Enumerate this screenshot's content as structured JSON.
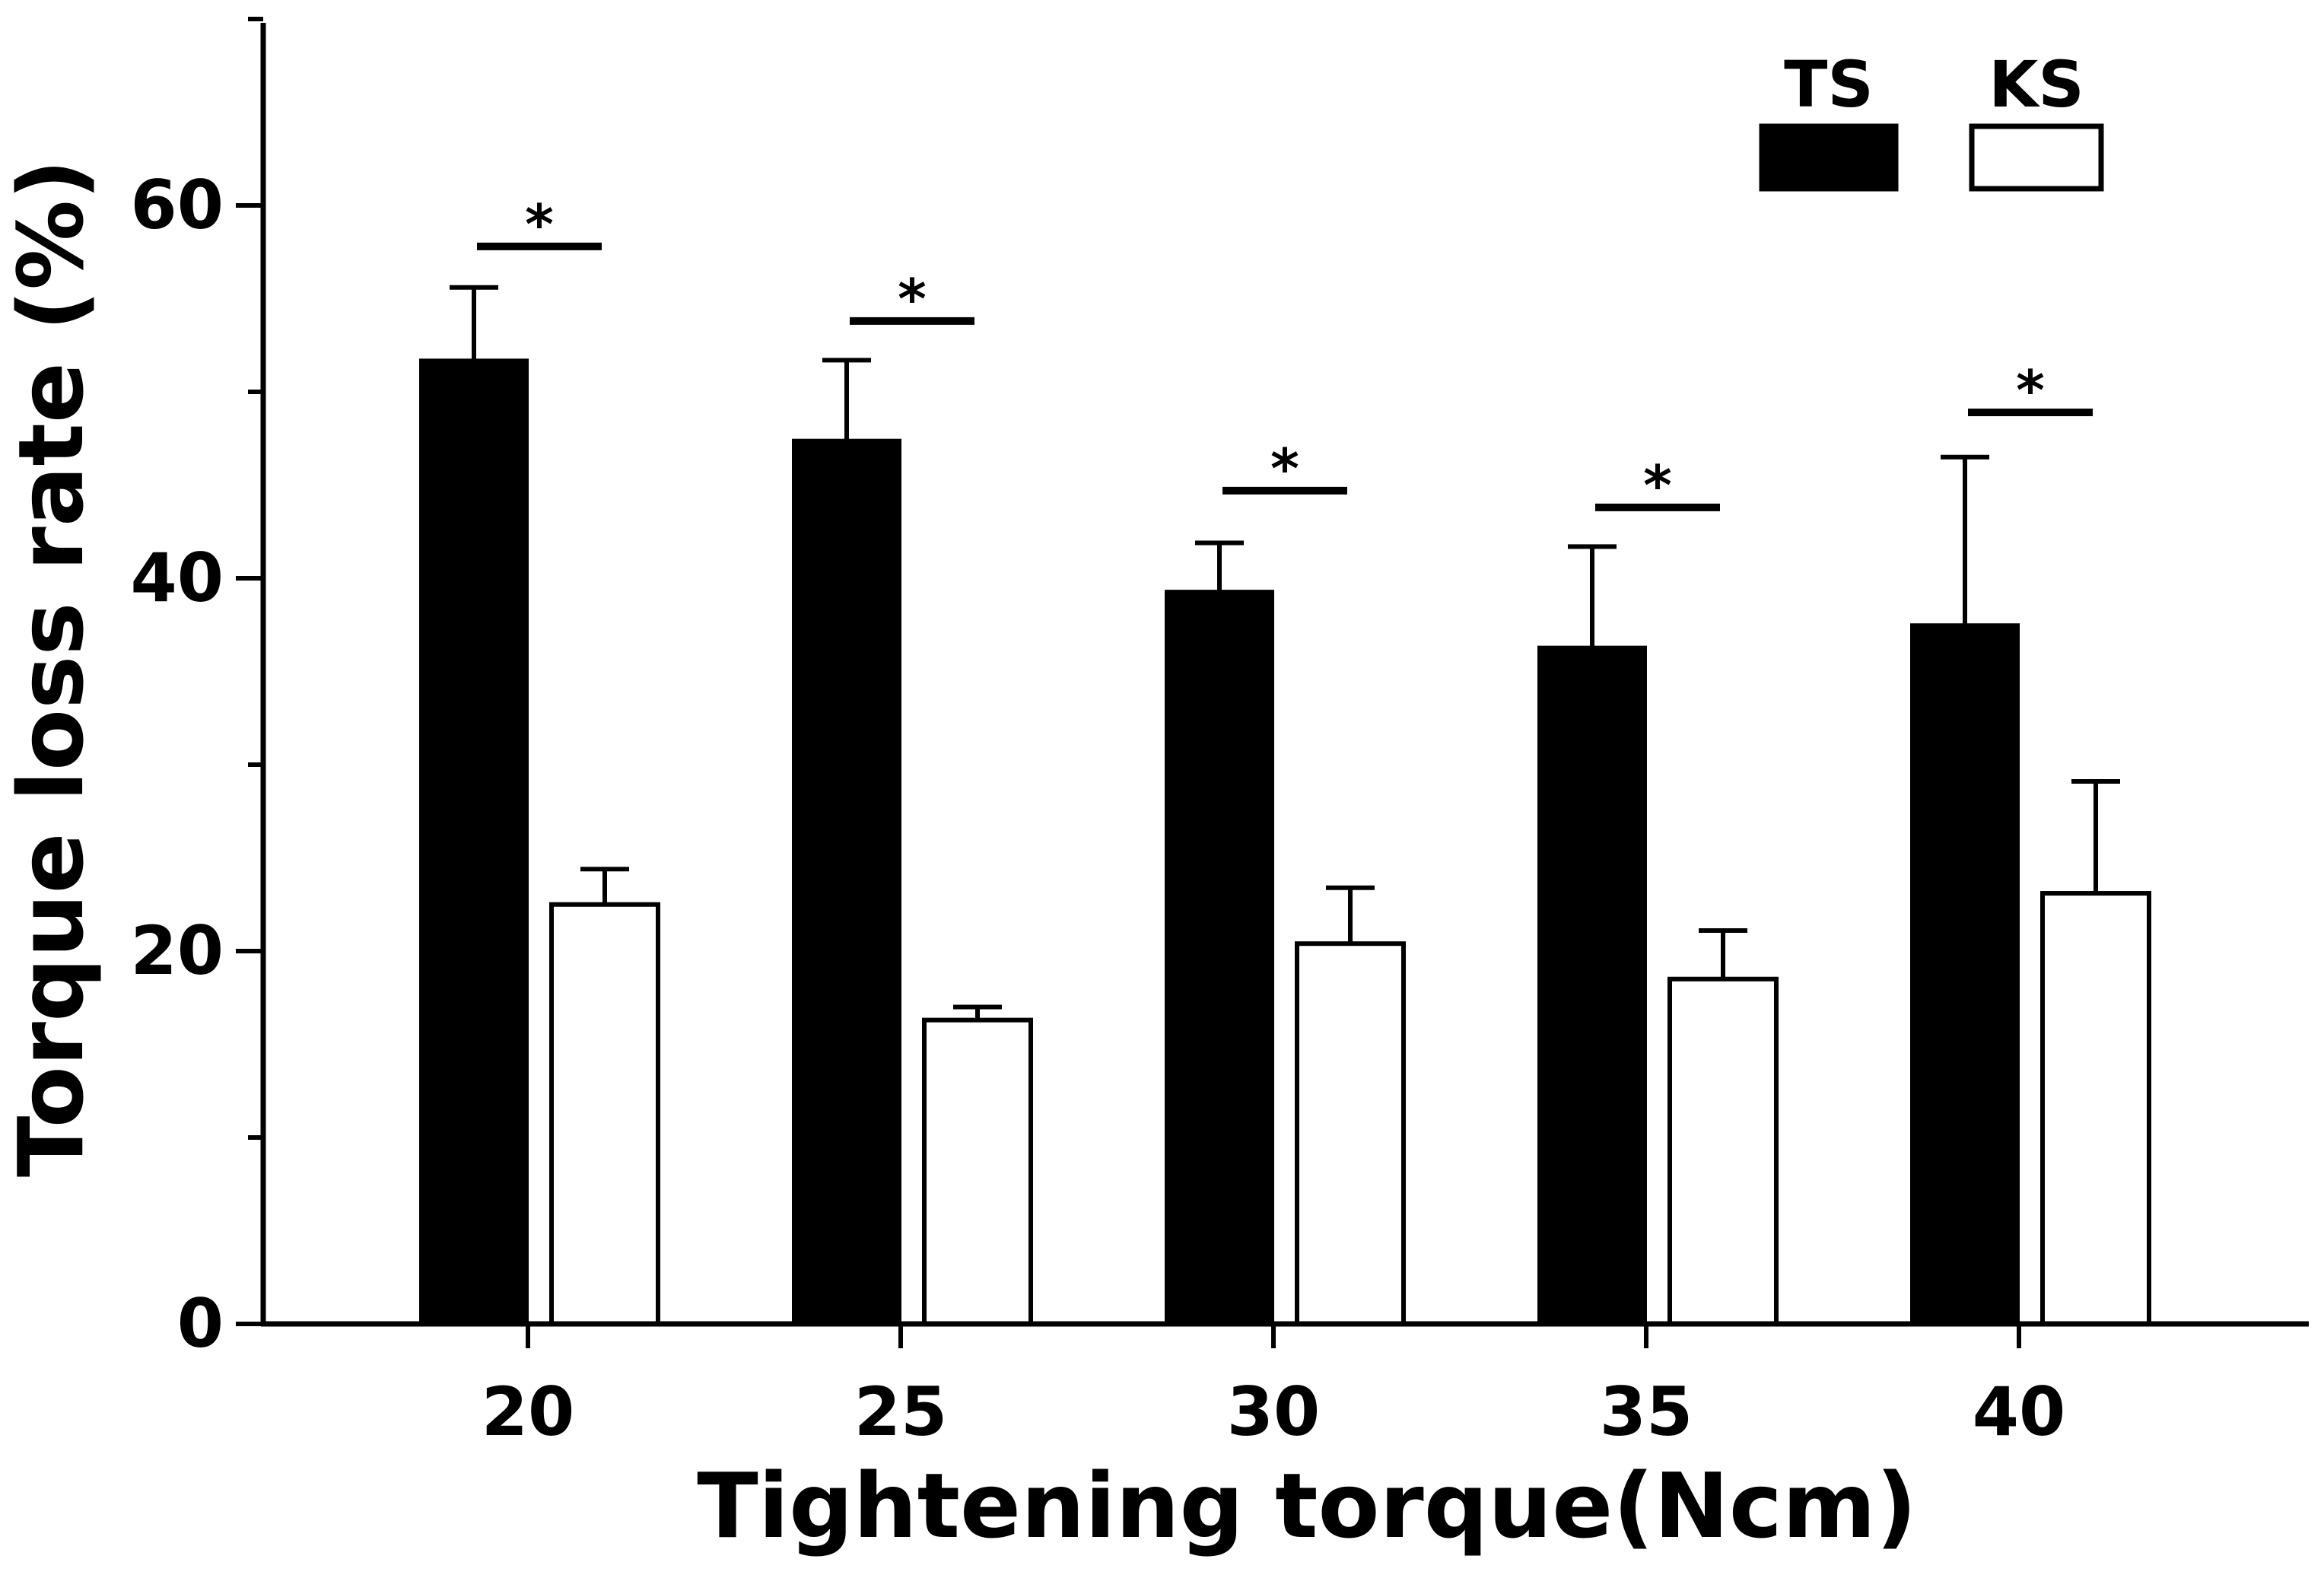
{
  "chart_data": {
    "type": "bar",
    "xlabel": "Tightening torque(Ncm)",
    "ylabel": "Torque loss rate (%)",
    "categories": [
      "20",
      "25",
      "30",
      "35",
      "40"
    ],
    "ylim": [
      0,
      70
    ],
    "yticks": [
      0,
      20,
      40,
      60
    ],
    "series": [
      {
        "name": "TS",
        "color": "#000000",
        "fill": "solid",
        "values": [
          51.7,
          47.4,
          39.3,
          36.3,
          37.5
        ],
        "errors": [
          3.9,
          4.3,
          2.6,
          5.4,
          9.0
        ]
      },
      {
        "name": "KS",
        "color": "#ffffff",
        "fill": "outline",
        "values": [
          22.5,
          16.3,
          20.4,
          18.5,
          23.1
        ],
        "errors": [
          1.9,
          0.7,
          3.0,
          2.6,
          6.0
        ]
      }
    ],
    "significance": {
      "marker": "*",
      "levels": [
        57.8,
        53.8,
        44.7,
        43.8,
        48.9
      ]
    },
    "legend": {
      "position": "top-right"
    }
  }
}
